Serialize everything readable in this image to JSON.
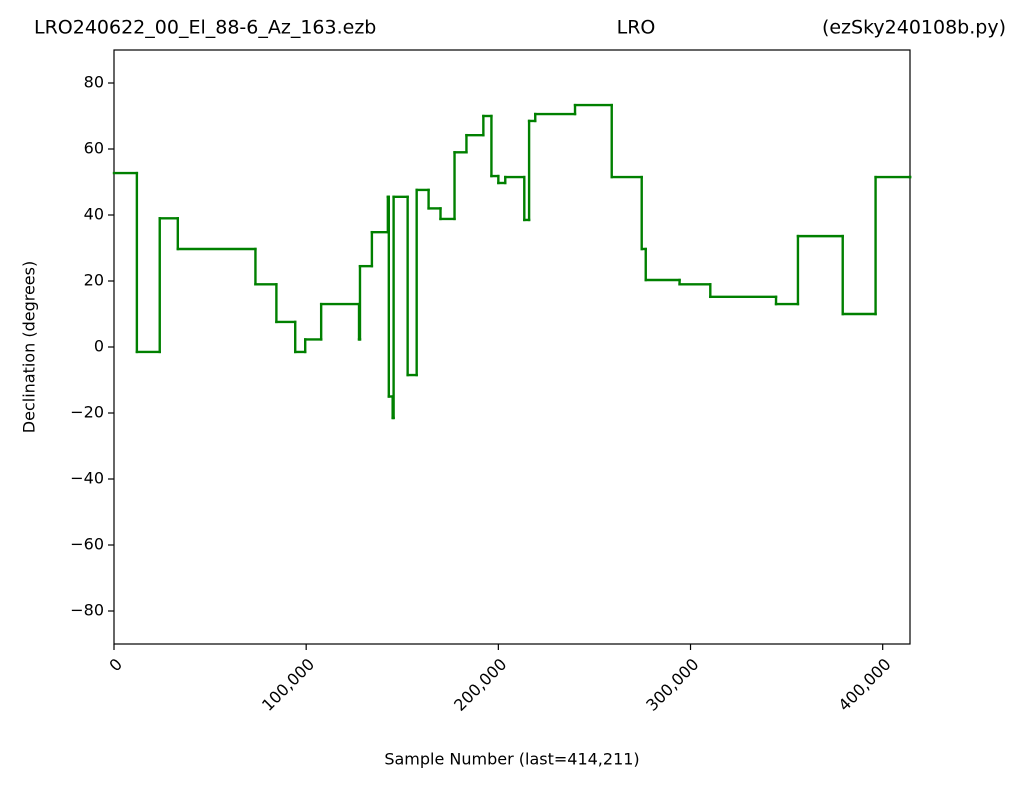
{
  "chart_data": {
    "type": "step",
    "title": [
      "LRO240622_00_El_88-6_Az_163.ezb",
      "LRO",
      "(ezSky240108b.py)"
    ],
    "xlabel": "Sample Number (last=414,211)",
    "ylabel": "Declination (degrees)",
    "xlim": [
      0,
      414211
    ],
    "ylim": [
      -90,
      90
    ],
    "xticks": [
      0,
      {
        "value": 100000,
        "label": "100,000"
      },
      {
        "value": 200000,
        "label": "200,000"
      },
      {
        "value": 300000,
        "label": "300,000"
      },
      {
        "value": 400000,
        "label": "400,000"
      }
    ],
    "yticks": [
      {
        "value": -80,
        "label": "−80"
      },
      {
        "value": -60,
        "label": "−60"
      },
      {
        "value": -40,
        "label": "−40"
      },
      {
        "value": -20,
        "label": "−20"
      },
      0,
      20,
      40,
      60,
      80
    ],
    "color": "#008000",
    "x": [
      0,
      11900,
      23800,
      33200,
      73600,
      84500,
      94300,
      99500,
      107800,
      127500,
      128000,
      134200,
      142500,
      143000,
      145000,
      145500,
      152800,
      157500,
      163700,
      169900,
      177200,
      183400,
      192200,
      196400,
      200000,
      203600,
      213500,
      216000,
      219200,
      239900,
      259000,
      274600,
      276700,
      294300,
      310300,
      344500,
      355900,
      379200,
      396300,
      414211
    ],
    "values": [
      52.7,
      -1.5,
      39,
      29.7,
      19,
      7.6,
      -1.5,
      2.3,
      13,
      2.3,
      24.5,
      34.8,
      45.5,
      -15,
      -21.5,
      45.5,
      -8.5,
      47.6,
      42,
      38.8,
      59,
      64.2,
      70,
      51.8,
      49.7,
      51.5,
      38.5,
      68.5,
      70.6,
      73.3,
      51.5,
      29.7,
      20.3,
      19,
      15.2,
      13,
      33.6,
      10,
      51.5,
      51.5
    ]
  }
}
